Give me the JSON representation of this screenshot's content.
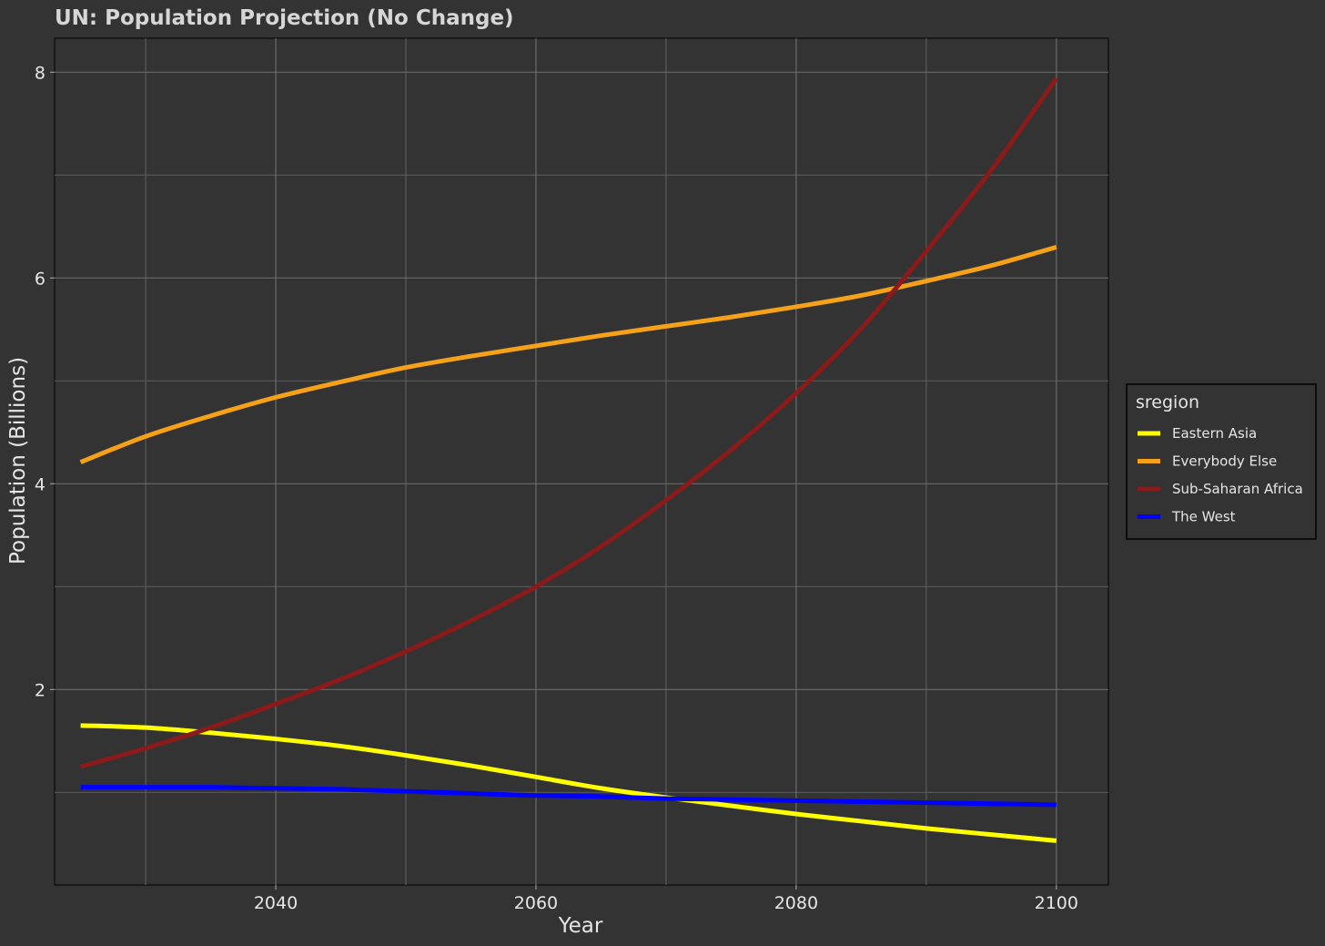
{
  "chart_data": {
    "type": "line",
    "title": "UN: Population Projection (No Change)",
    "xlabel": "Year",
    "ylabel": "Population (Billions)",
    "xlim": [
      2023,
      2104
    ],
    "ylim": [
      0.1,
      8.33
    ],
    "x_ticks": [
      2040,
      2060,
      2080,
      2100
    ],
    "x_tick_labels": [
      "2040",
      "2060",
      "2080",
      "2100"
    ],
    "x_minor_ticks": [
      2030,
      2050,
      2070,
      2090
    ],
    "y_ticks": [
      2,
      4,
      6,
      8
    ],
    "y_tick_labels": [
      "2",
      "4",
      "6",
      "8"
    ],
    "y_minor_ticks": [
      1,
      3,
      5,
      7
    ],
    "grid": true,
    "legend_title": "sregion",
    "legend_position": "right",
    "x": [
      2025,
      2030,
      2035,
      2040,
      2045,
      2050,
      2055,
      2060,
      2065,
      2070,
      2075,
      2080,
      2085,
      2090,
      2095,
      2100
    ],
    "series": [
      {
        "name": "Eastern Asia",
        "color": "#ffff00",
        "values": [
          1.65,
          1.63,
          1.58,
          1.52,
          1.45,
          1.36,
          1.26,
          1.15,
          1.04,
          0.95,
          0.87,
          0.79,
          0.72,
          0.65,
          0.59,
          0.53
        ]
      },
      {
        "name": "Everybody Else",
        "color": "#f5a11a",
        "values": [
          4.21,
          4.46,
          4.66,
          4.84,
          4.99,
          5.13,
          5.24,
          5.34,
          5.44,
          5.53,
          5.62,
          5.72,
          5.83,
          5.97,
          6.12,
          6.3
        ]
      },
      {
        "name": "Sub-Saharan Africa",
        "color": "#8b1a1a",
        "values": [
          1.25,
          1.43,
          1.63,
          1.86,
          2.1,
          2.37,
          2.67,
          3.0,
          3.39,
          3.84,
          4.33,
          4.88,
          5.51,
          6.26,
          7.05,
          7.94
        ]
      },
      {
        "name": "The West",
        "color": "#0000ff",
        "values": [
          1.05,
          1.05,
          1.05,
          1.04,
          1.03,
          1.01,
          0.99,
          0.97,
          0.96,
          0.94,
          0.93,
          0.92,
          0.91,
          0.9,
          0.89,
          0.88
        ]
      }
    ]
  }
}
